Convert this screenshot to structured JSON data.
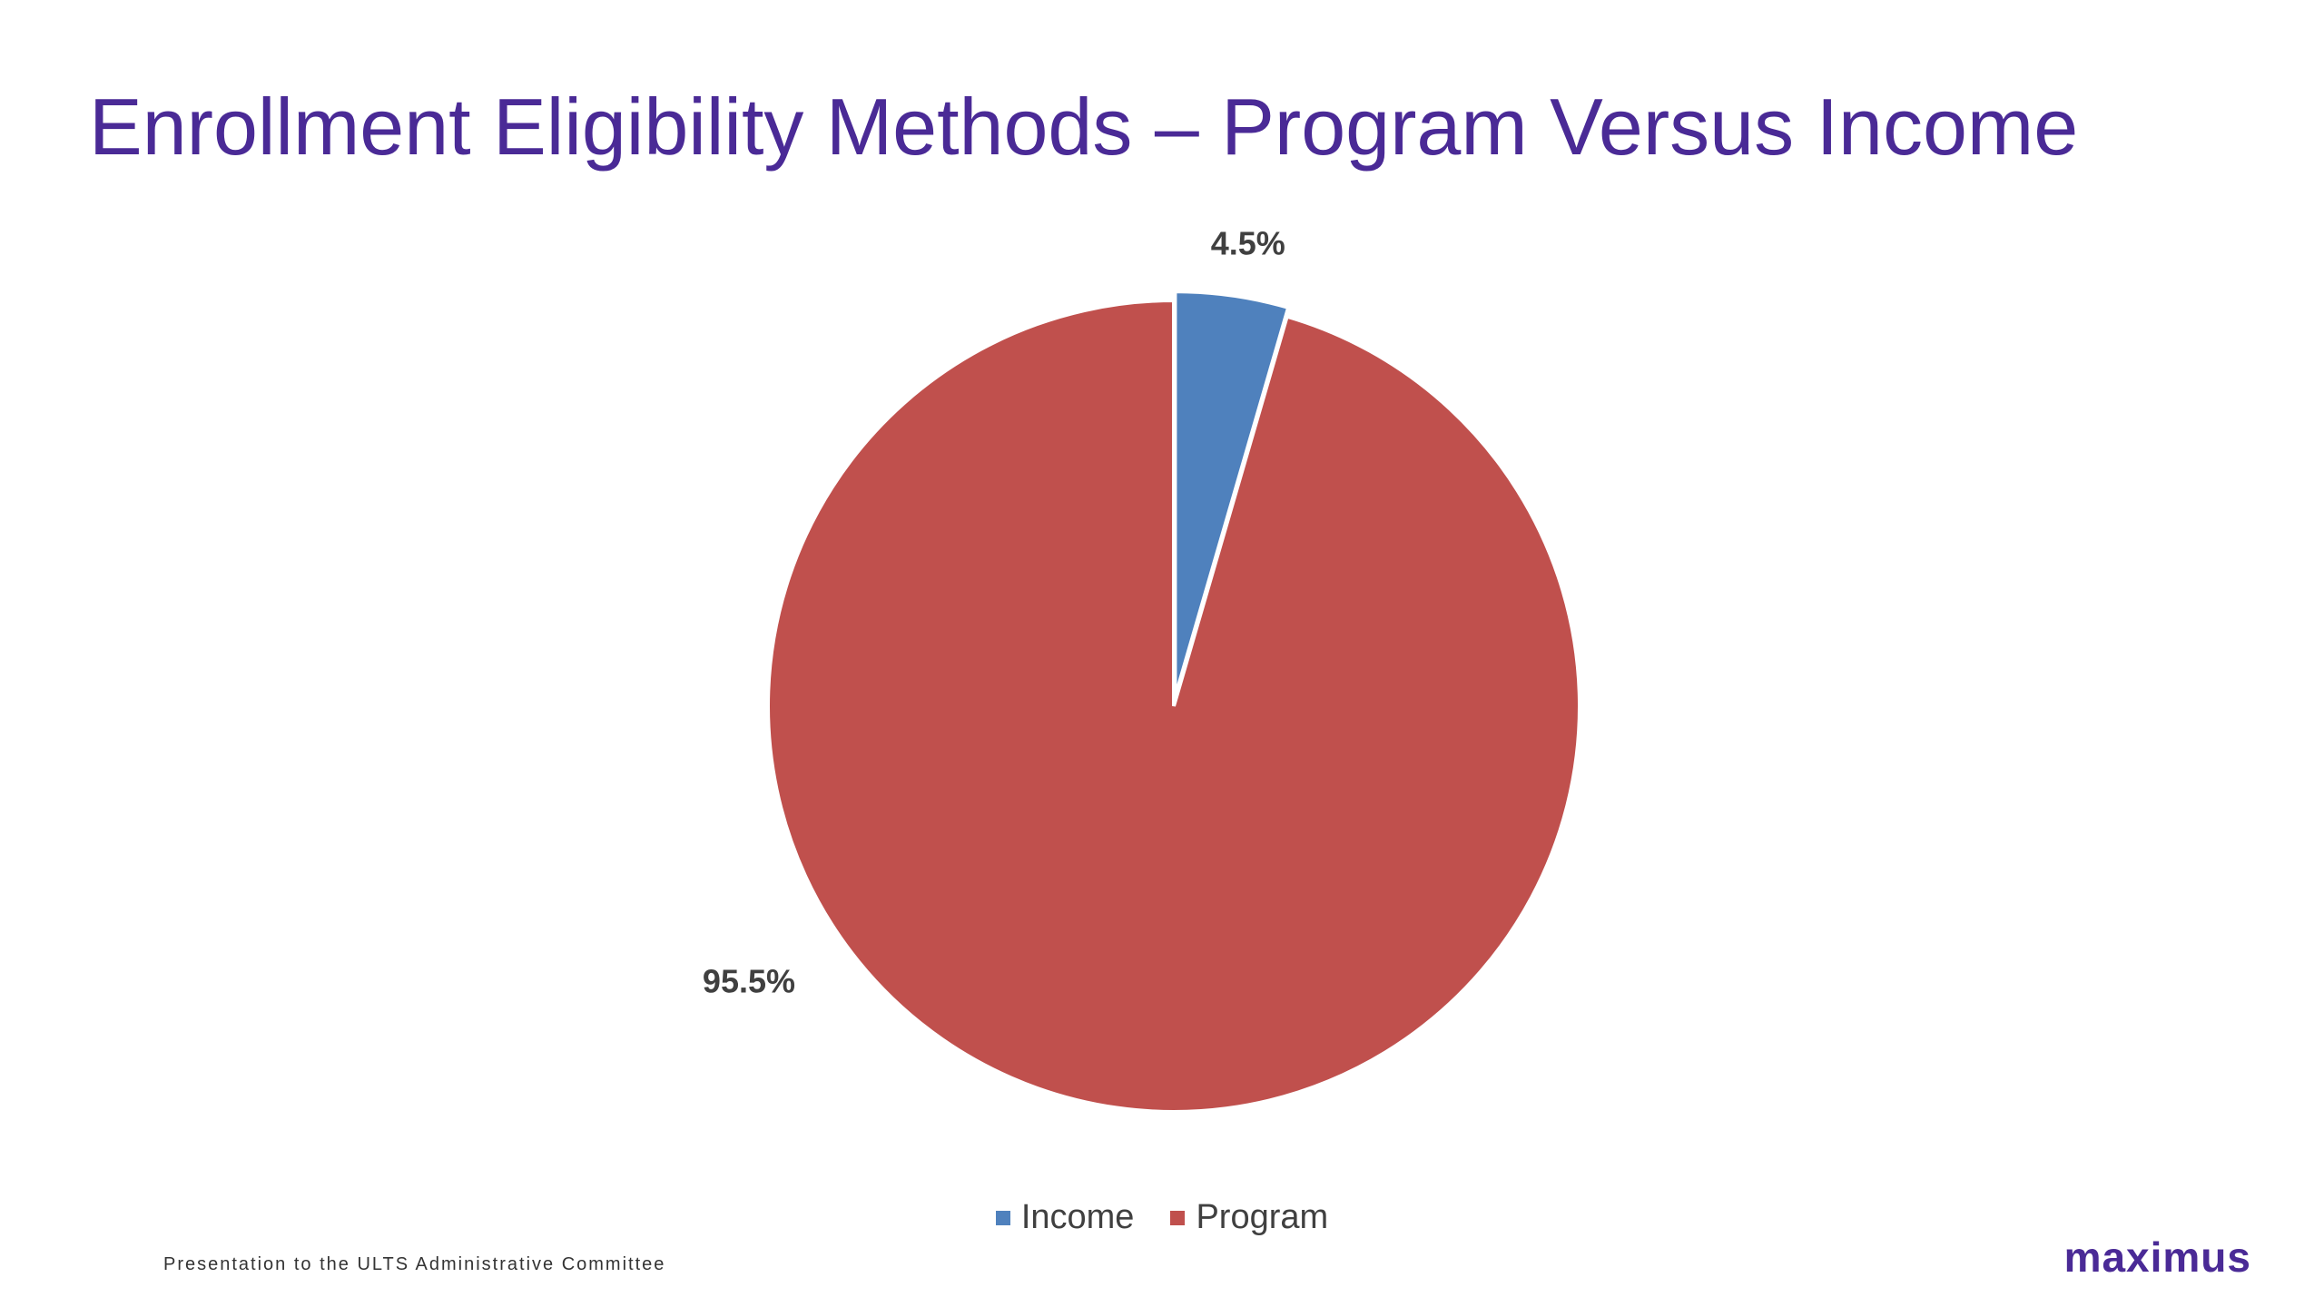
{
  "slide": {
    "title": "Enrollment Eligibility Methods – Program Versus Income",
    "footer": "Presentation to the ULTS Administrative Committee",
    "logo": "maximus"
  },
  "colors": {
    "title": "#4a2a96",
    "income": "#4f81bd",
    "program": "#c0504d",
    "label": "#404040",
    "logo": "#4a2a96"
  },
  "chart_data": {
    "type": "pie",
    "title": "",
    "categories": [
      "Income",
      "Program"
    ],
    "values": [
      4.5,
      95.5
    ],
    "data_labels": [
      "4.5%",
      "95.5%"
    ],
    "colors": [
      "#4f81bd",
      "#c0504d"
    ],
    "legend": {
      "position": "bottom",
      "entries": [
        "Income",
        "Program"
      ]
    },
    "start_angle": "top, clockwise",
    "exploded_slice": "Income"
  }
}
